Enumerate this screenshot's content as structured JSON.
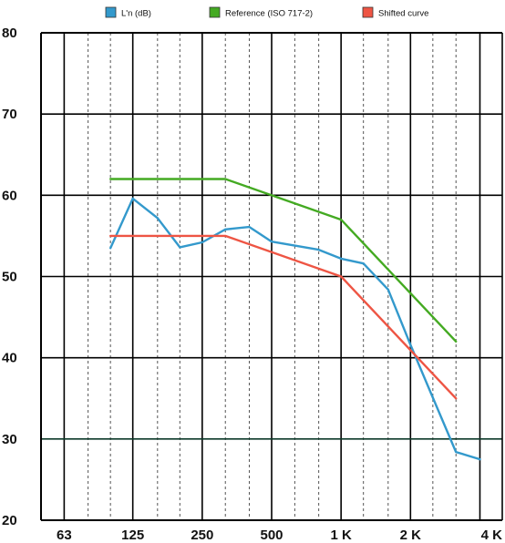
{
  "chart_data": {
    "type": "line",
    "x_scale": "log",
    "x_unit": "Hz",
    "xlim": [
      50,
      5000
    ],
    "ylim": [
      20,
      80
    ],
    "yticks": [
      20,
      30,
      40,
      50,
      60,
      70,
      80
    ],
    "ytick_labels": [
      "20",
      "30",
      "40",
      "50",
      "60",
      "70",
      "80"
    ],
    "xticks": [
      63,
      125,
      250,
      500,
      1000,
      2000,
      4000
    ],
    "xtick_labels": [
      "63",
      "125",
      "250",
      "500",
      "1 K",
      "2 K",
      "4 K"
    ],
    "grid": "major solid, one-third-octave dashed",
    "legend_placement": "top",
    "series": [
      {
        "name": "L'n (dB)",
        "color": "#3399cc",
        "x": [
          100,
          125,
          160,
          200,
          250,
          315,
          400,
          500,
          630,
          800,
          1000,
          1250,
          1600,
          2000,
          2500,
          3150,
          4000
        ],
        "y": [
          53.5,
          59.6,
          57.2,
          53.6,
          54.2,
          55.8,
          56.1,
          54.3,
          53.8,
          53.3,
          52.2,
          51.6,
          48.4,
          41.6,
          35.1,
          28.4,
          27.5
        ]
      },
      {
        "name": "Reference (ISO 717-2)",
        "color": "#44aa22",
        "x": [
          100,
          315,
          1000,
          3150
        ],
        "y": [
          62,
          62,
          57,
          42
        ]
      },
      {
        "name": "Shifted curve",
        "color": "#ee5544",
        "x": [
          100,
          315,
          1000,
          3150
        ],
        "y": [
          55,
          55,
          50,
          35
        ]
      }
    ]
  }
}
